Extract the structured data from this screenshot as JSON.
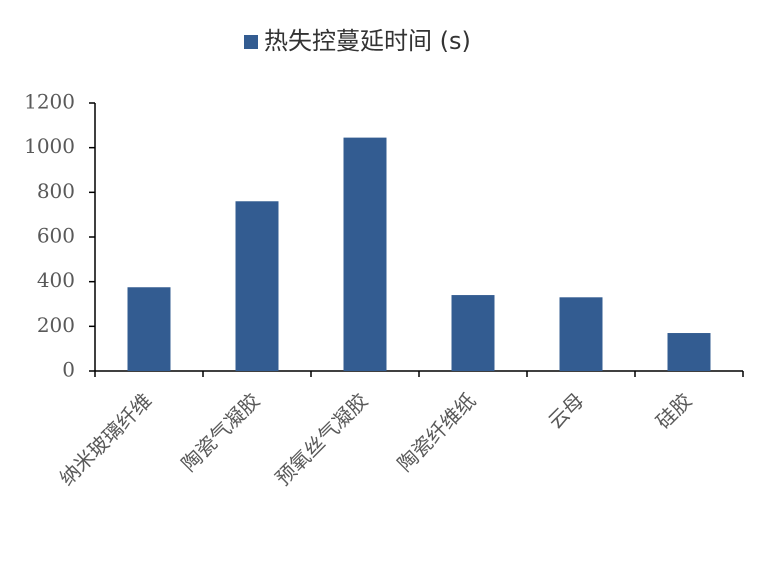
{
  "chart_data": {
    "type": "bar",
    "categories": [
      "纳米玻璃纤维",
      "陶瓷气凝胶",
      "预氧丝气凝胶",
      "陶瓷纤维纸",
      "云母",
      "硅胶"
    ],
    "series": [
      {
        "name": "热失控蔓延时间 (s)",
        "color": "#335c91",
        "values": [
          375,
          760,
          1045,
          340,
          330,
          170
        ]
      }
    ],
    "ylim": [
      0,
      1200
    ],
    "yticks": [
      0,
      200,
      400,
      600,
      800,
      1000,
      1200
    ],
    "legend": "top",
    "grid": false
  }
}
